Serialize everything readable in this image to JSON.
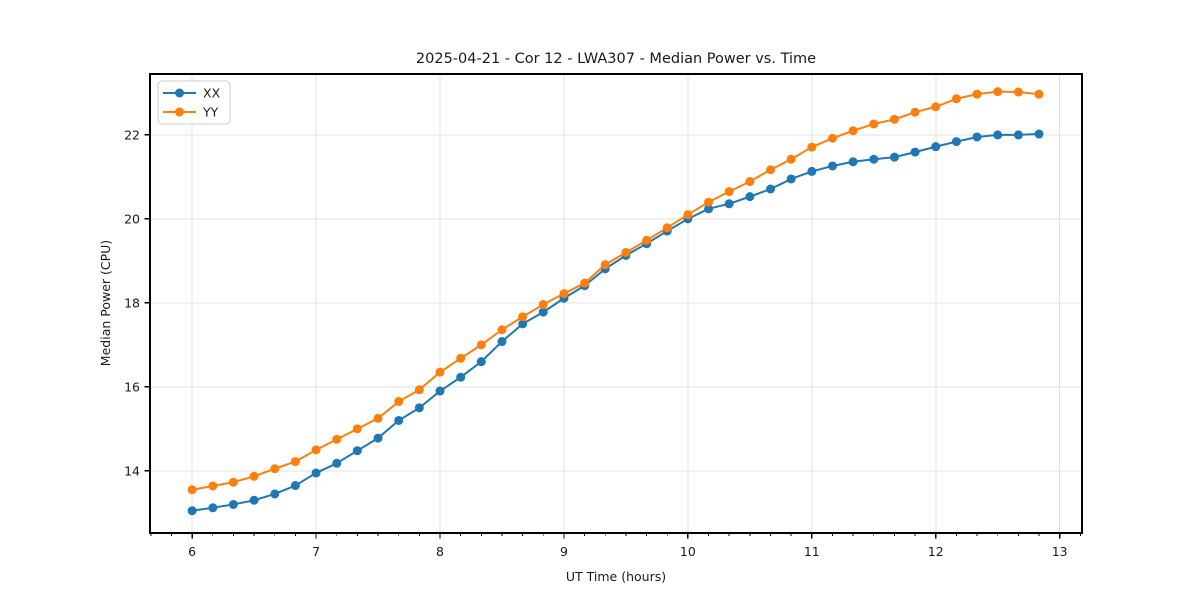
{
  "chart_data": {
    "type": "line",
    "title": "2025-04-21 - Cor 12 - LWA307 - Median Power vs. Time",
    "xlabel": "UT Time (hours)",
    "ylabel": "Median Power (CPU)",
    "xlim": [
      5.66,
      13.18
    ],
    "ylim": [
      12.52,
      23.45
    ],
    "x_ticks": [
      6,
      7,
      8,
      9,
      10,
      11,
      12,
      13
    ],
    "y_ticks": [
      14,
      16,
      18,
      20,
      22
    ],
    "x_minor_step": 0.166667,
    "grid": true,
    "legend_position": "upper-left",
    "marker": "circle",
    "x": [
      6.0,
      6.167,
      6.333,
      6.5,
      6.667,
      6.833,
      7.0,
      7.167,
      7.333,
      7.5,
      7.667,
      7.833,
      8.0,
      8.167,
      8.333,
      8.5,
      8.667,
      8.833,
      9.0,
      9.167,
      9.333,
      9.5,
      9.667,
      9.833,
      10.0,
      10.167,
      10.333,
      10.5,
      10.667,
      10.833,
      11.0,
      11.167,
      11.333,
      11.5,
      11.667,
      11.833,
      12.0,
      12.167,
      12.333,
      12.5,
      12.667,
      12.833
    ],
    "series": [
      {
        "name": "XX",
        "color": "#1f77b4",
        "values": [
          13.05,
          13.12,
          13.2,
          13.3,
          13.45,
          13.65,
          13.95,
          14.18,
          14.48,
          14.78,
          15.2,
          15.5,
          15.9,
          16.23,
          16.6,
          17.08,
          17.5,
          17.78,
          18.11,
          18.41,
          18.81,
          19.13,
          19.41,
          19.71,
          20.0,
          20.24,
          20.36,
          20.53,
          20.71,
          20.95,
          21.13,
          21.26,
          21.36,
          21.42,
          21.47,
          21.59,
          21.72,
          21.84,
          21.95,
          22.0,
          22.0,
          22.02
        ]
      },
      {
        "name": "YY",
        "color": "#ff7f0e",
        "values": [
          13.55,
          13.64,
          13.73,
          13.87,
          14.05,
          14.22,
          14.5,
          14.75,
          15.0,
          15.25,
          15.65,
          15.93,
          16.35,
          16.68,
          17.0,
          17.36,
          17.67,
          17.96,
          18.22,
          18.47,
          18.91,
          19.2,
          19.49,
          19.79,
          20.1,
          20.4,
          20.65,
          20.89,
          21.17,
          21.42,
          21.71,
          21.92,
          22.1,
          22.26,
          22.37,
          22.54,
          22.67,
          22.86,
          22.97,
          23.03,
          23.02,
          22.97
        ]
      }
    ],
    "style_colors": {
      "grid": "#e0e0e0",
      "spine": "#000000",
      "tick": "#000000",
      "background": "#ffffff"
    }
  }
}
